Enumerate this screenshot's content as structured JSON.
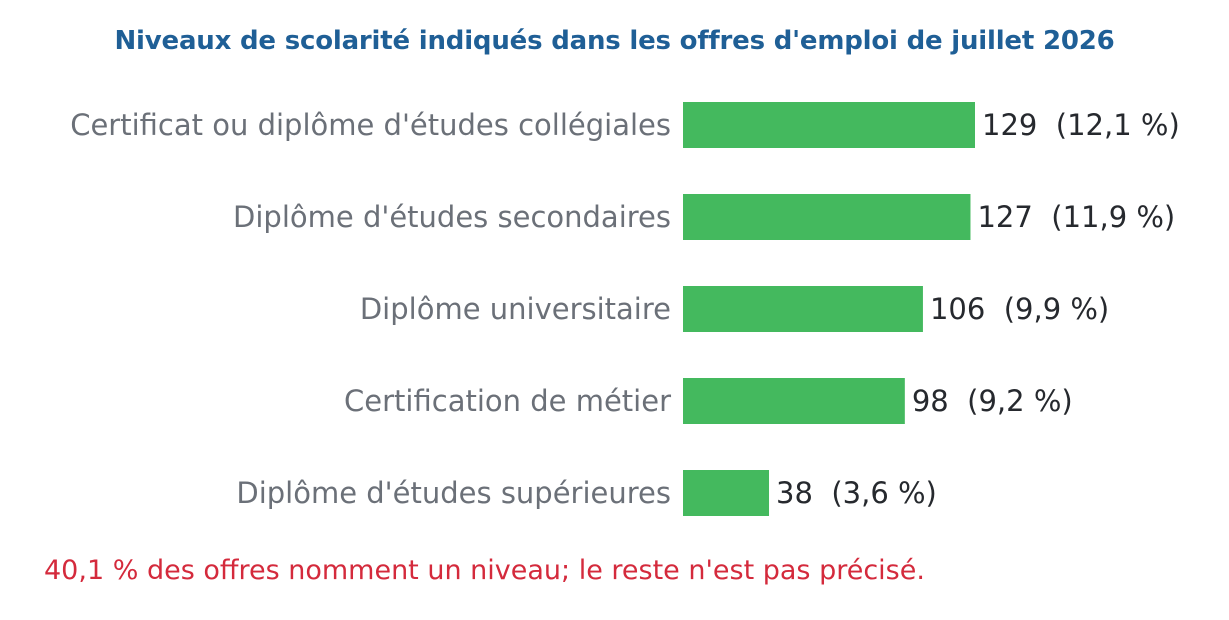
{
  "chart_data": {
    "type": "bar",
    "orientation": "horizontal",
    "title": "Niveaux de scolarité indiqués dans les offres d'emploi de juillet 2026",
    "categories": [
      "Certificat ou diplôme d'études collégiales",
      "Diplôme d'études secondaires",
      "Diplôme universitaire",
      "Certification de métier",
      "Diplôme d'études supérieures"
    ],
    "values": [
      129,
      127,
      106,
      98,
      38
    ],
    "data_labels": [
      "129  (12,1 %)",
      "127  (11,9 %)",
      "106  (9,9 %)",
      "98  (9,2 %)",
      "38  (3,6 %)"
    ],
    "xlim": [
      0,
      129
    ],
    "grid": false,
    "legend": "none",
    "bar_color": "#44b95e",
    "footnote": "40,1 % des offres nomment un niveau; le reste n'est pas précisé."
  }
}
